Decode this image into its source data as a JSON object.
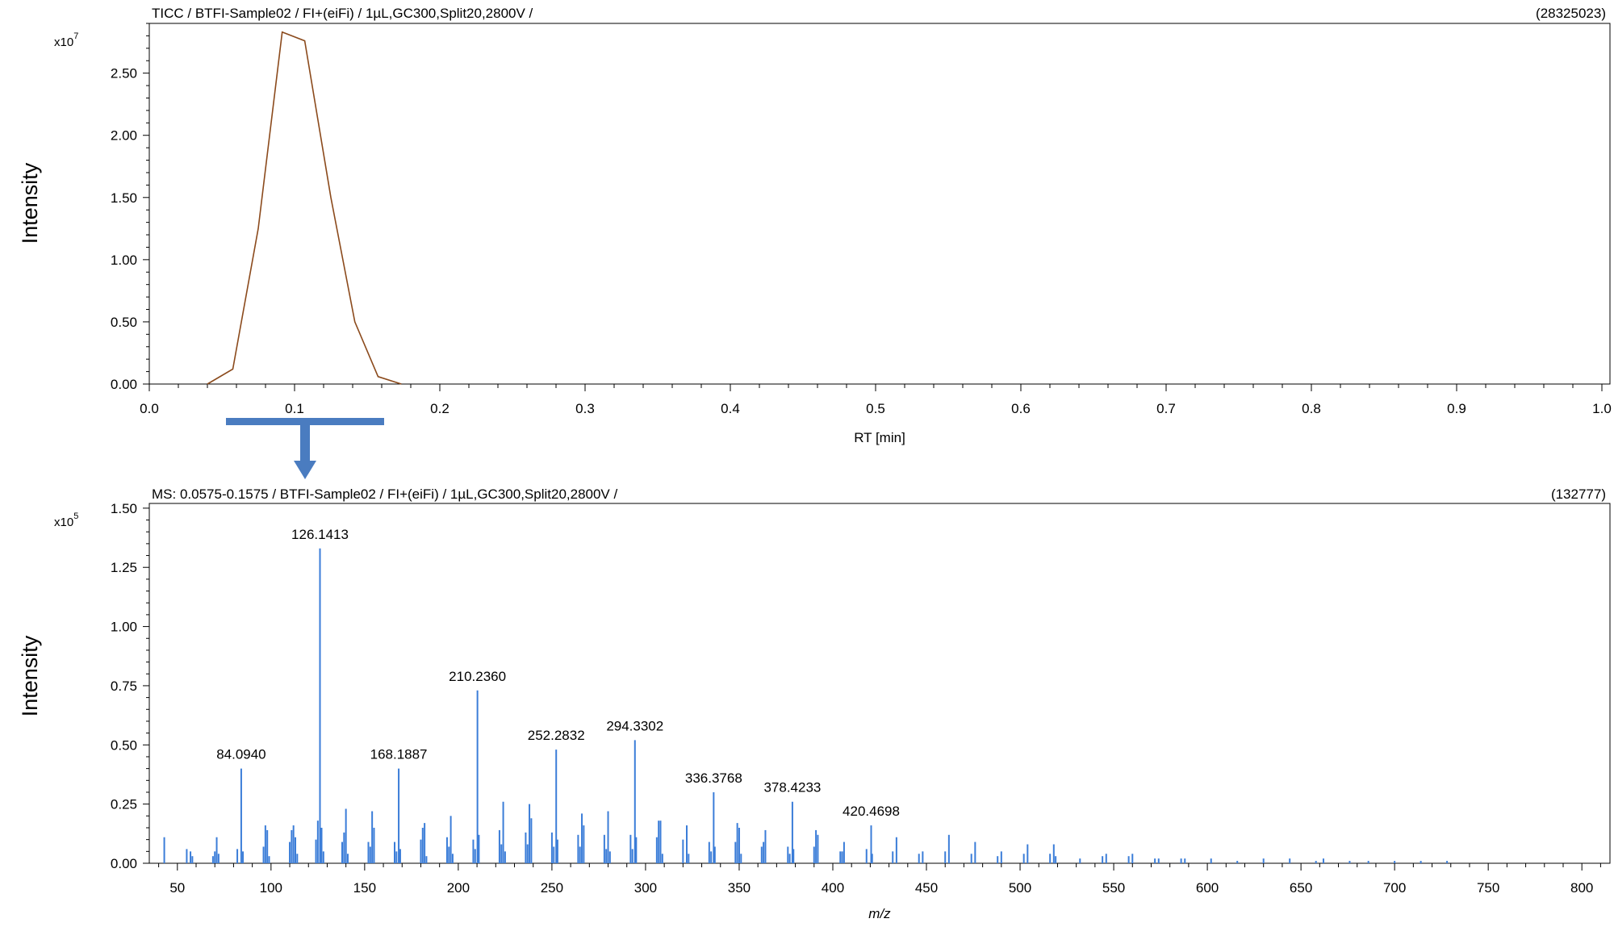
{
  "chart_data": [
    {
      "type": "line",
      "header": "TICC / BTFI-Sample02 / FI+(eiFi) / 1µL,GC300,Split20,2800V /",
      "max_label": "(28325023)",
      "exponent_label": "x10",
      "exponent_power": "7",
      "ylabel": "Intensity",
      "xlabel": "RT [min]",
      "xlim": [
        0,
        1
      ],
      "ylim": [
        0,
        2.9
      ],
      "x_ticks": [
        "0.0",
        "0.1",
        "0.2",
        "0.3",
        "0.4",
        "0.5",
        "0.6",
        "0.7",
        "0.8",
        "0.9",
        "1.0"
      ],
      "y_ticks": [
        "0.00",
        "0.50",
        "1.00",
        "1.50",
        "2.00",
        "2.50"
      ],
      "line_color": "#8b4a1c",
      "series": [
        {
          "name": "TICC",
          "x": [
            0.04,
            0.0575,
            0.075,
            0.0915,
            0.107,
            0.125,
            0.1415,
            0.1575,
            0.1735
          ],
          "y": [
            0.0,
            0.12,
            1.25,
            2.83,
            2.76,
            1.5,
            0.5,
            0.06,
            0.0
          ]
        }
      ]
    },
    {
      "type": "bar",
      "header": "MS: 0.0575-0.1575 / BTFI-Sample02 / FI+(eiFi) / 1µL,GC300,Split20,2800V /",
      "max_label": "(132777)",
      "exponent_label": "x10",
      "exponent_power": "5",
      "ylabel": "Intensity",
      "xlabel": "m/z",
      "xlim": [
        35,
        815
      ],
      "ylim": [
        0,
        1.52
      ],
      "x_ticks": [
        "50",
        "100",
        "150",
        "200",
        "250",
        "300",
        "350",
        "400",
        "450",
        "500",
        "550",
        "600",
        "650",
        "700",
        "750",
        "800"
      ],
      "y_ticks": [
        "0.00",
        "0.25",
        "0.50",
        "0.75",
        "1.00",
        "1.25",
        "1.50"
      ],
      "bar_color": "#3b7dd8",
      "peaks": [
        [
          43,
          0.11
        ],
        [
          55,
          0.06
        ],
        [
          57,
          0.05
        ],
        [
          58,
          0.03
        ],
        [
          69,
          0.03
        ],
        [
          70,
          0.05
        ],
        [
          71,
          0.11
        ],
        [
          72,
          0.04
        ],
        [
          82,
          0.06
        ],
        [
          84.094,
          0.4
        ],
        [
          85,
          0.05
        ],
        [
          96,
          0.07
        ],
        [
          97,
          0.16
        ],
        [
          98,
          0.14
        ],
        [
          99,
          0.03
        ],
        [
          110,
          0.09
        ],
        [
          111,
          0.14
        ],
        [
          112,
          0.16
        ],
        [
          113,
          0.11
        ],
        [
          114,
          0.04
        ],
        [
          124,
          0.1
        ],
        [
          125,
          0.18
        ],
        [
          126.1413,
          1.33
        ],
        [
          127,
          0.15
        ],
        [
          128,
          0.05
        ],
        [
          138,
          0.09
        ],
        [
          139,
          0.13
        ],
        [
          140,
          0.23
        ],
        [
          141,
          0.04
        ],
        [
          152,
          0.09
        ],
        [
          153,
          0.07
        ],
        [
          154,
          0.22
        ],
        [
          155,
          0.15
        ],
        [
          166,
          0.09
        ],
        [
          167,
          0.05
        ],
        [
          168.1887,
          0.4
        ],
        [
          169,
          0.06
        ],
        [
          180,
          0.1
        ],
        [
          181,
          0.15
        ],
        [
          182,
          0.17
        ],
        [
          183,
          0.03
        ],
        [
          194,
          0.11
        ],
        [
          195,
          0.07
        ],
        [
          196,
          0.2
        ],
        [
          197,
          0.04
        ],
        [
          208,
          0.1
        ],
        [
          209,
          0.06
        ],
        [
          210.236,
          0.73
        ],
        [
          211,
          0.12
        ],
        [
          222,
          0.14
        ],
        [
          223,
          0.08
        ],
        [
          224,
          0.26
        ],
        [
          225,
          0.05
        ],
        [
          236,
          0.13
        ],
        [
          237,
          0.08
        ],
        [
          238,
          0.25
        ],
        [
          239,
          0.19
        ],
        [
          250,
          0.13
        ],
        [
          251,
          0.07
        ],
        [
          252.2832,
          0.48
        ],
        [
          253,
          0.1
        ],
        [
          264,
          0.12
        ],
        [
          265,
          0.07
        ],
        [
          266,
          0.21
        ],
        [
          267,
          0.16
        ],
        [
          278,
          0.12
        ],
        [
          279,
          0.06
        ],
        [
          280,
          0.22
        ],
        [
          281,
          0.05
        ],
        [
          292,
          0.12
        ],
        [
          293,
          0.06
        ],
        [
          294.3302,
          0.52
        ],
        [
          295,
          0.11
        ],
        [
          306,
          0.11
        ],
        [
          307,
          0.18
        ],
        [
          308,
          0.18
        ],
        [
          309,
          0.04
        ],
        [
          320,
          0.1
        ],
        [
          322,
          0.16
        ],
        [
          323,
          0.04
        ],
        [
          334,
          0.09
        ],
        [
          335,
          0.05
        ],
        [
          336.3768,
          0.3
        ],
        [
          337,
          0.07
        ],
        [
          348,
          0.09
        ],
        [
          349,
          0.17
        ],
        [
          350,
          0.15
        ],
        [
          351,
          0.04
        ],
        [
          362,
          0.07
        ],
        [
          363,
          0.09
        ],
        [
          364,
          0.14
        ],
        [
          376,
          0.07
        ],
        [
          377,
          0.04
        ],
        [
          378.4233,
          0.26
        ],
        [
          379,
          0.06
        ],
        [
          390,
          0.07
        ],
        [
          391,
          0.14
        ],
        [
          392,
          0.12
        ],
        [
          404,
          0.05
        ],
        [
          405,
          0.05
        ],
        [
          406,
          0.09
        ],
        [
          418,
          0.06
        ],
        [
          420.4698,
          0.16
        ],
        [
          421,
          0.04
        ],
        [
          432,
          0.05
        ],
        [
          434,
          0.11
        ],
        [
          446,
          0.04
        ],
        [
          448,
          0.05
        ],
        [
          460,
          0.05
        ],
        [
          462,
          0.12
        ],
        [
          474,
          0.04
        ],
        [
          476,
          0.09
        ],
        [
          488,
          0.03
        ],
        [
          490,
          0.05
        ],
        [
          502,
          0.04
        ],
        [
          504,
          0.08
        ],
        [
          516,
          0.04
        ],
        [
          518,
          0.08
        ],
        [
          519,
          0.03
        ],
        [
          532,
          0.02
        ],
        [
          544,
          0.03
        ],
        [
          546,
          0.04
        ],
        [
          558,
          0.03
        ],
        [
          560,
          0.04
        ],
        [
          572,
          0.02
        ],
        [
          574,
          0.02
        ],
        [
          586,
          0.02
        ],
        [
          588,
          0.02
        ],
        [
          602,
          0.02
        ],
        [
          616,
          0.01
        ],
        [
          630,
          0.02
        ],
        [
          644,
          0.02
        ],
        [
          658,
          0.01
        ],
        [
          662,
          0.02
        ],
        [
          676,
          0.01
        ],
        [
          686,
          0.01
        ],
        [
          700,
          0.01
        ],
        [
          714,
          0.01
        ],
        [
          728,
          0.01
        ]
      ],
      "peak_labels": [
        {
          "x": 84.094,
          "y": 0.4,
          "label": "84.0940"
        },
        {
          "x": 126.1413,
          "y": 1.33,
          "label": "126.1413"
        },
        {
          "x": 168.1887,
          "y": 0.4,
          "label": "168.1887"
        },
        {
          "x": 210.236,
          "y": 0.73,
          "label": "210.2360"
        },
        {
          "x": 252.2832,
          "y": 0.48,
          "label": "252.2832"
        },
        {
          "x": 294.3302,
          "y": 0.52,
          "label": "294.3302"
        },
        {
          "x": 336.3768,
          "y": 0.3,
          "label": "336.3768"
        },
        {
          "x": 378.4233,
          "y": 0.26,
          "label": "378.4233"
        },
        {
          "x": 420.4698,
          "y": 0.16,
          "label": "420.4698"
        }
      ]
    }
  ],
  "arrow_color": "#4a7cc0"
}
